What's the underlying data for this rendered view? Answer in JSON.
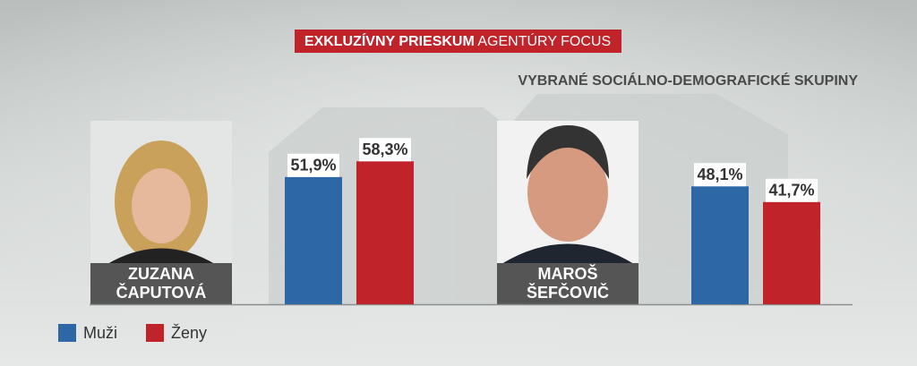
{
  "chart_data": {
    "type": "bar",
    "title": [
      "EXKLUZÍVNY PRIESKUM",
      "AGENTÚRY FOCUS"
    ],
    "subtitle": "VYBRANÉ SOCIÁLNO-DEMOGRAFICKÉ SKUPINY",
    "categories": [
      [
        "ZUZANA",
        "ČAPUTOVÁ"
      ],
      [
        "MAROŠ",
        "ŠEFČOVIČ"
      ]
    ],
    "series": [
      {
        "name": "Muži",
        "color": "#2e67a6",
        "values": [
          51.9,
          48.1
        ],
        "value_labels": [
          "51,9%",
          "48,1%"
        ]
      },
      {
        "name": "Ženy",
        "color": "#c1232b",
        "values": [
          58.3,
          41.7
        ],
        "value_labels": [
          "58,3%",
          "41,7%"
        ]
      }
    ]
  }
}
